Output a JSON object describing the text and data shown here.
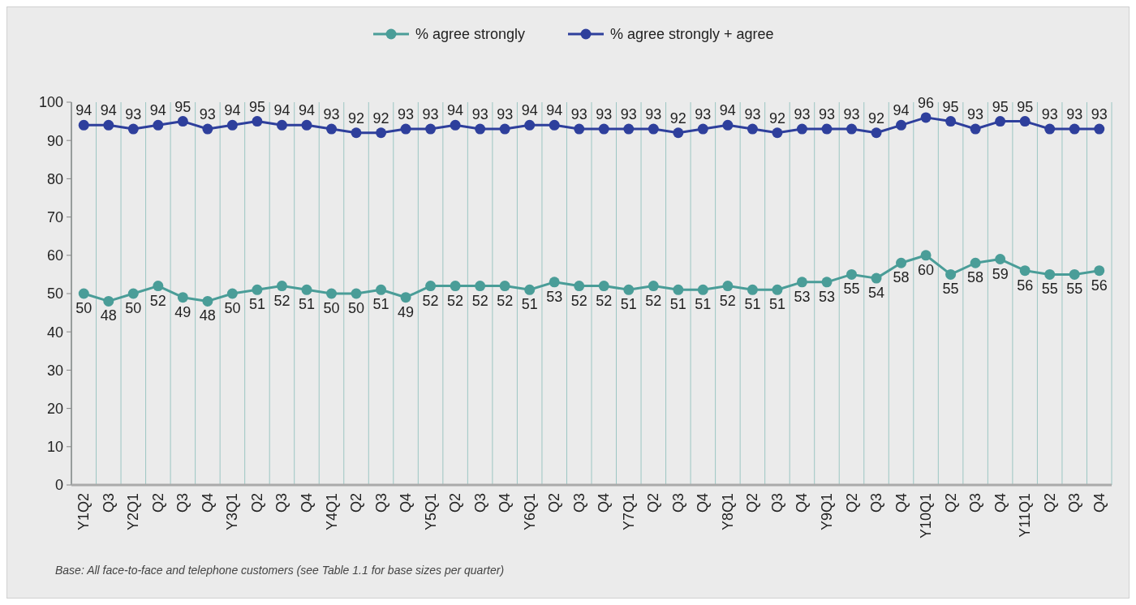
{
  "chart_data": {
    "type": "line",
    "categories": [
      "Y1Q2",
      "Q3",
      "Y2Q1",
      "Q2",
      "Q3",
      "Q4",
      "Y3Q1",
      "Q2",
      "Q3",
      "Q4",
      "Y4Q1",
      "Q2",
      "Q3",
      "Q4",
      "Y5Q1",
      "Q2",
      "Q3",
      "Q4",
      "Y6Q1",
      "Q2",
      "Q3",
      "Q4",
      "Y7Q1",
      "Q2",
      "Q3",
      "Q4",
      "Y8Q1",
      "Q2",
      "Q3",
      "Q4",
      "Y9Q1",
      "Q2",
      "Q3",
      "Q4",
      "Y10Q1",
      "Q2",
      "Q3",
      "Q4",
      "Y11Q1",
      "Q2",
      "Q3",
      "Q4"
    ],
    "series": [
      {
        "name": "% agree strongly",
        "color": "#4a9d98",
        "values": [
          50,
          48,
          50,
          52,
          49,
          48,
          50,
          51,
          52,
          51,
          50,
          50,
          51,
          49,
          52,
          52,
          52,
          52,
          51,
          53,
          52,
          52,
          51,
          52,
          51,
          51,
          52,
          51,
          51,
          53,
          53,
          55,
          54,
          58,
          60,
          55,
          58,
          59,
          56,
          55,
          55,
          56
        ]
      },
      {
        "name": "% agree strongly + agree",
        "color": "#2e3f9c",
        "values": [
          94,
          94,
          93,
          94,
          95,
          93,
          94,
          95,
          94,
          94,
          93,
          92,
          92,
          93,
          93,
          94,
          93,
          93,
          94,
          94,
          93,
          93,
          93,
          93,
          92,
          93,
          94,
          93,
          92,
          93,
          93,
          93,
          92,
          94,
          96,
          95,
          93,
          95,
          95,
          93,
          93,
          93
        ]
      }
    ],
    "ylim": [
      0,
      100
    ],
    "yticks": [
      0,
      10,
      20,
      30,
      40,
      50,
      60,
      70,
      80,
      90,
      100
    ],
    "grid": "x",
    "legend": "top",
    "marker": "circle",
    "line_style": "solid",
    "data_labels": true,
    "annotations": [
      "Base: All face-to-face and telephone customers (see Table 1.1 for base sizes per quarter)"
    ]
  }
}
